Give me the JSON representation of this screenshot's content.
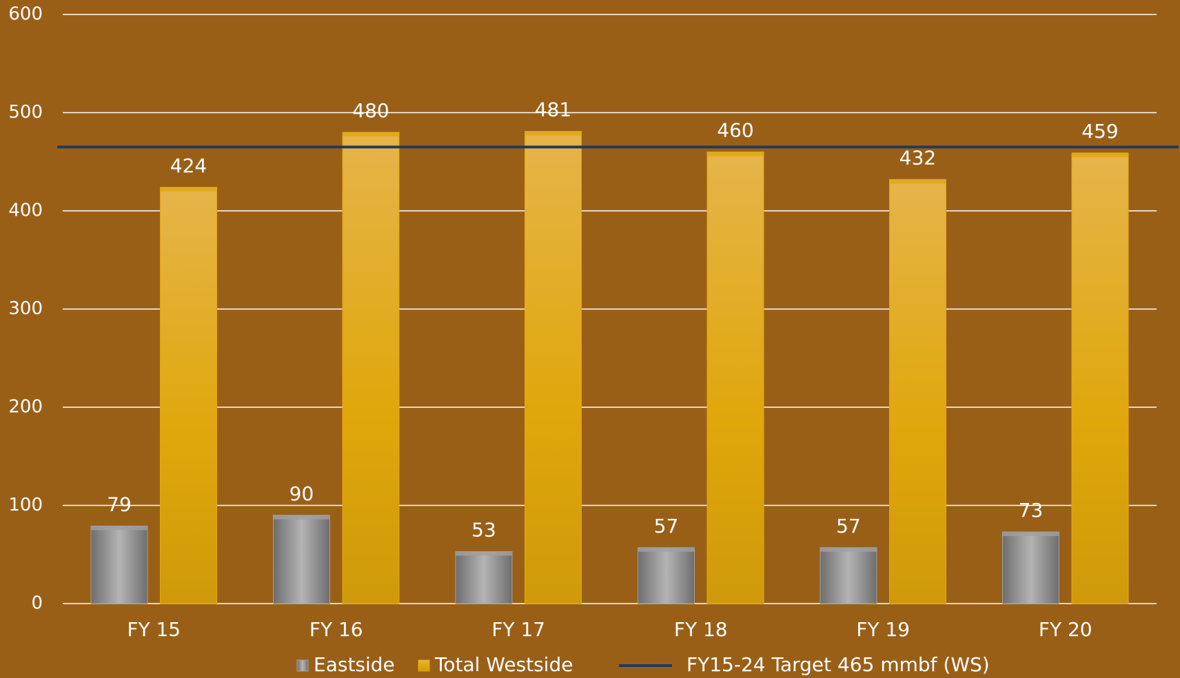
{
  "chart_data": {
    "type": "bar",
    "categories": [
      "FY 15",
      "FY 16",
      "FY 17",
      "FY 18",
      "FY 19",
      "FY 20"
    ],
    "series": [
      {
        "name": "Eastside",
        "color": "#a0a0a0",
        "values": [
          79,
          90,
          53,
          57,
          57,
          73
        ]
      },
      {
        "name": "Total Westside",
        "color": "#e0a810",
        "values": [
          424,
          480,
          481,
          460,
          432,
          459
        ]
      }
    ],
    "reference_line": {
      "name": "FY15-24 Target 465 mmbf (WS)",
      "value": 465,
      "color": "#1f3a5f"
    },
    "ylim": [
      0,
      600
    ],
    "yticks": [
      0,
      100,
      200,
      300,
      400,
      500,
      600
    ],
    "grid": true,
    "legend": "bottom"
  }
}
